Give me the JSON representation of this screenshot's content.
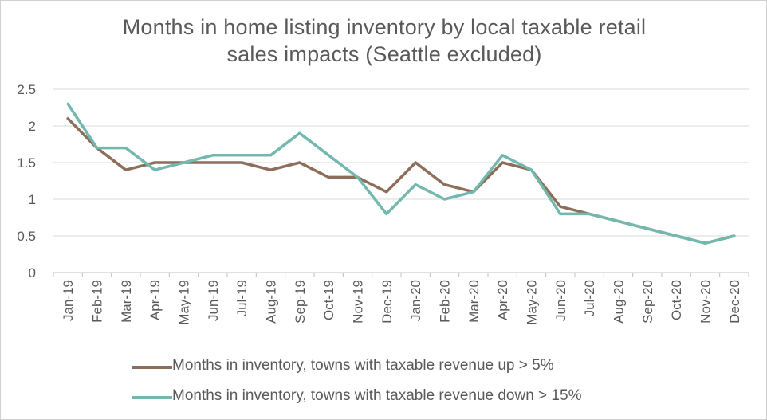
{
  "chart_data": {
    "type": "line",
    "title_line1": "Months in home listing inventory by local taxable retail",
    "title_line2": "sales impacts (Seattle excluded)",
    "categories": [
      "Jan-19",
      "Feb-19",
      "Mar-19",
      "Apr-19",
      "May-19",
      "Jun-19",
      "Jul-19",
      "Aug-19",
      "Sep-19",
      "Oct-19",
      "Nov-19",
      "Dec-19",
      "Jan-20",
      "Feb-20",
      "Mar-20",
      "Apr-20",
      "May-20",
      "Jun-20",
      "Jul-20",
      "Aug-20",
      "Sep-20",
      "Oct-20",
      "Nov-20",
      "Dec-20"
    ],
    "series": [
      {
        "name": "Months in inventory, towns with taxable revenue up > 5%",
        "color": "#8c6e5a",
        "values": [
          2.1,
          1.7,
          1.4,
          1.5,
          1.5,
          1.5,
          1.5,
          1.4,
          1.5,
          1.3,
          1.3,
          1.1,
          1.5,
          1.2,
          1.1,
          1.5,
          1.4,
          0.9,
          0.8,
          0.7,
          0.6,
          0.5,
          0.4,
          0.5
        ]
      },
      {
        "name": "Months in inventory, towns with taxable revenue down > 15%",
        "color": "#72b8ae",
        "values": [
          2.3,
          1.7,
          1.7,
          1.4,
          1.5,
          1.6,
          1.6,
          1.6,
          1.9,
          1.6,
          1.3,
          0.8,
          1.2,
          1.0,
          1.1,
          1.6,
          1.4,
          0.8,
          0.8,
          0.7,
          0.6,
          0.5,
          0.4,
          0.5
        ]
      }
    ],
    "yticks": [
      "0",
      "0.5",
      "1",
      "1.5",
      "2",
      "2.5"
    ],
    "ylim": [
      0,
      2.5
    ],
    "grid": true,
    "gridColor": "#d9d9d9",
    "legend_position": "bottom"
  }
}
